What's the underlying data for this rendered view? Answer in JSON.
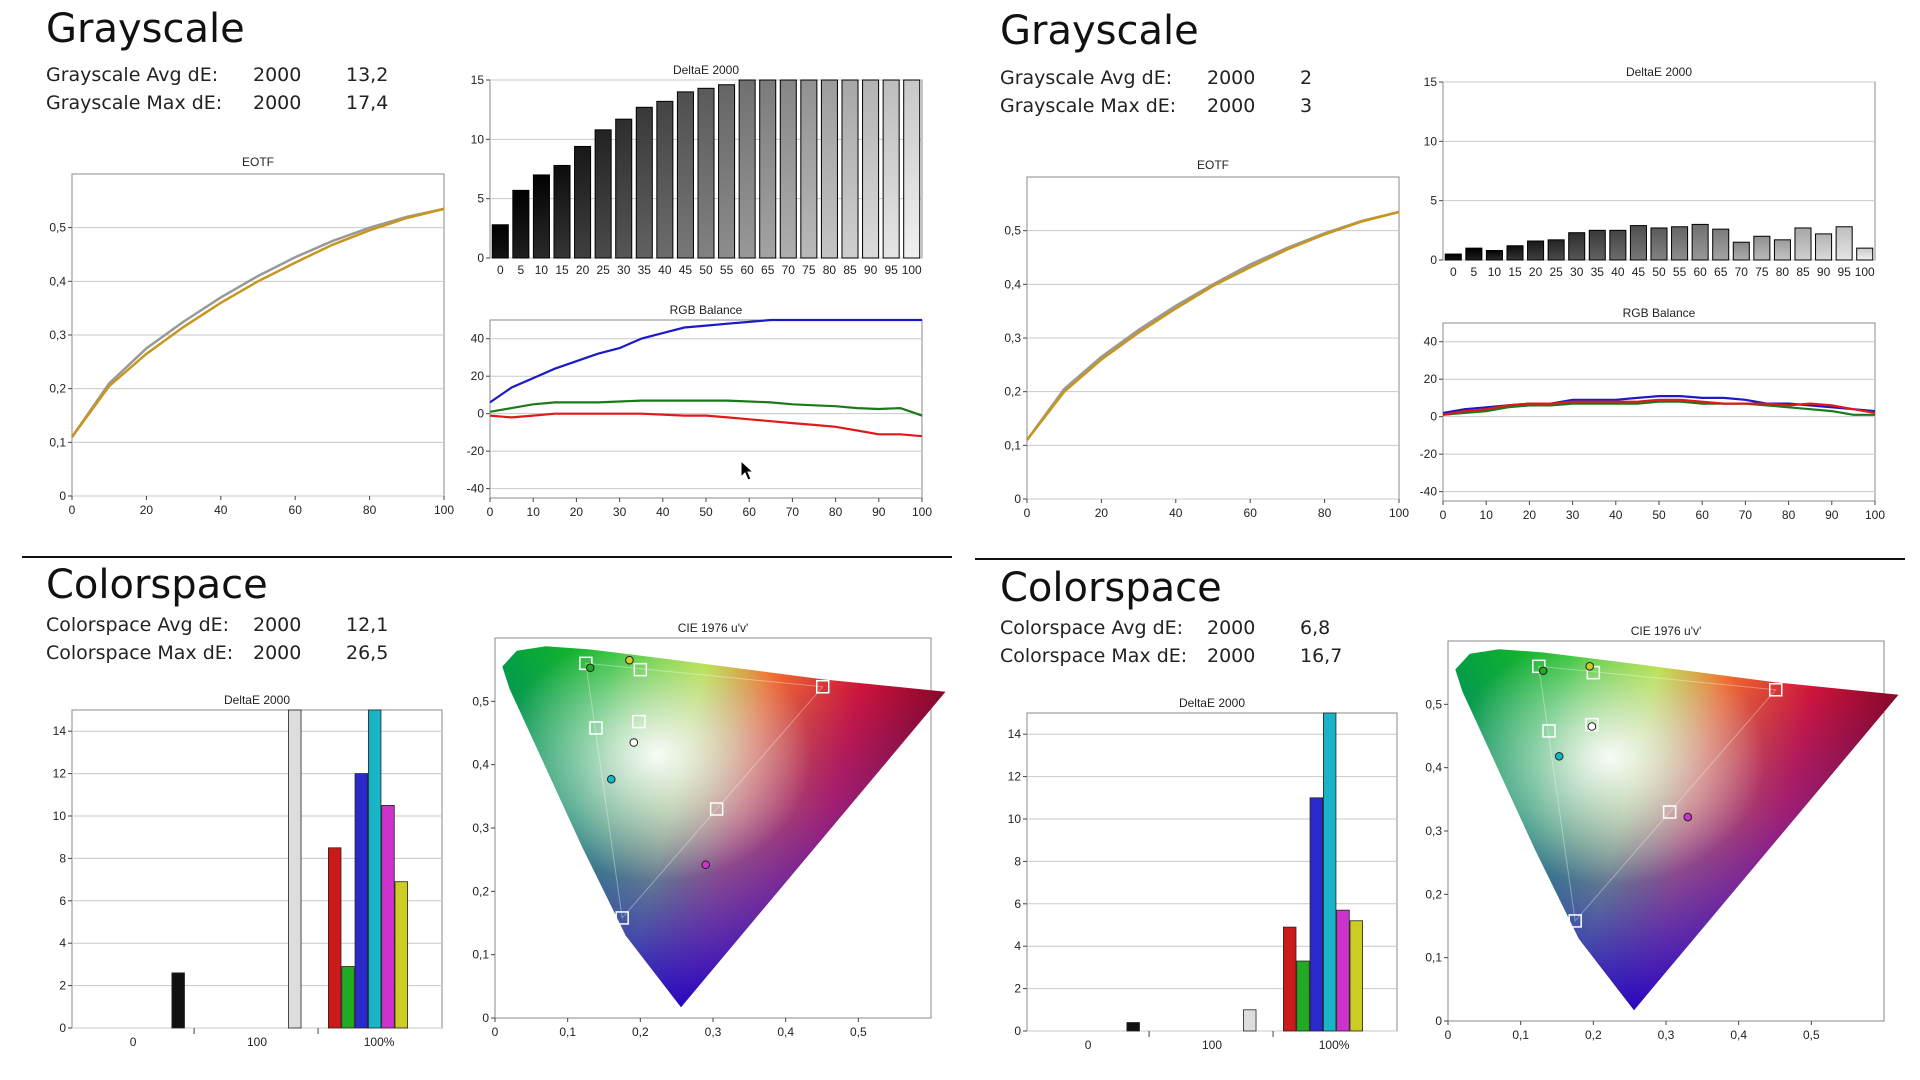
{
  "panels": [
    {
      "grayscale": {
        "heading": "Grayscale",
        "metrics": [
          {
            "label": "Grayscale Avg dE:",
            "standard": "2000",
            "value": "13,2"
          },
          {
            "label": "Grayscale Max dE:",
            "standard": "2000",
            "value": "17,4"
          }
        ]
      },
      "colorspace": {
        "heading": "Colorspace",
        "metrics": [
          {
            "label": "Colorspace Avg dE:",
            "standard": "2000",
            "value": "12,1"
          },
          {
            "label": "Colorspace Max dE:",
            "standard": "2000",
            "value": "26,5"
          }
        ]
      }
    },
    {
      "grayscale": {
        "heading": "Grayscale",
        "metrics": [
          {
            "label": "Grayscale Avg dE:",
            "standard": "2000",
            "value": "2"
          },
          {
            "label": "Grayscale Max dE:",
            "standard": "2000",
            "value": "3"
          }
        ]
      },
      "colorspace": {
        "heading": "Colorspace",
        "metrics": [
          {
            "label": "Colorspace Avg dE:",
            "standard": "2000",
            "value": "6,8"
          },
          {
            "label": "Colorspace Max dE:",
            "standard": "2000",
            "value": "16,7"
          }
        ]
      }
    }
  ],
  "chart_data": [
    {
      "type": "line",
      "title": "EOTF",
      "x": [
        0,
        10,
        20,
        30,
        40,
        50,
        60,
        70,
        80,
        90,
        100
      ],
      "series": [
        {
          "values": [
            0.11,
            0.21,
            0.275,
            0.325,
            0.37,
            0.41,
            0.445,
            0.475,
            0.5,
            0.52,
            0.535
          ],
          "color": "#999999"
        },
        {
          "values": [
            0.11,
            0.205,
            0.265,
            0.315,
            0.36,
            0.4,
            0.435,
            0.468,
            0.495,
            0.518,
            0.535
          ],
          "color": "#C8961E"
        }
      ],
      "xlim": [
        0,
        100
      ],
      "ylim": [
        0,
        0.6
      ],
      "xticks": [
        "0",
        "20",
        "40",
        "60",
        "80",
        "100"
      ],
      "yticks": [
        "0",
        "0,1",
        "0,2",
        "0,3",
        "0,4",
        "0,5"
      ]
    },
    {
      "type": "bar",
      "title": "DeltaE 2000",
      "categories": [
        "0",
        "5",
        "10",
        "15",
        "20",
        "25",
        "30",
        "35",
        "40",
        "45",
        "50",
        "55",
        "60",
        "65",
        "70",
        "75",
        "80",
        "85",
        "90",
        "95",
        "100"
      ],
      "values": [
        2.8,
        5.7,
        7,
        7.8,
        9.4,
        10.8,
        11.7,
        12.7,
        13.2,
        14,
        14.3,
        14.6,
        15.5,
        15.8,
        16.2,
        16.6,
        16.8,
        17,
        17.2,
        17.3,
        17.4
      ],
      "ylim": [
        0,
        15
      ],
      "yticks": [
        "0",
        "5",
        "10",
        "15"
      ]
    },
    {
      "type": "line",
      "title": "RGB Balance",
      "x": [
        0,
        5,
        10,
        15,
        20,
        25,
        30,
        35,
        40,
        45,
        50,
        55,
        60,
        65,
        70,
        75,
        80,
        85,
        90,
        95,
        100
      ],
      "series": [
        {
          "color": "#1A1AC8",
          "values": [
            6,
            14,
            19,
            24,
            28,
            32,
            35,
            40,
            43,
            46,
            47,
            48,
            49,
            50,
            50,
            50,
            50,
            50,
            50,
            50,
            50
          ]
        },
        {
          "color": "#1A7A1A",
          "values": [
            1,
            3,
            5,
            6,
            6,
            6,
            6.5,
            7,
            7,
            7,
            7,
            7,
            6.5,
            6,
            5,
            4.5,
            4,
            3,
            2.5,
            3,
            -1
          ]
        },
        {
          "color": "#E01A1A",
          "values": [
            -1,
            -2,
            -1,
            0,
            0,
            0,
            0,
            0,
            -0.5,
            -1,
            -1,
            -2,
            -3,
            -4,
            -5,
            -6,
            -7,
            -9,
            -11,
            -11,
            -12
          ]
        }
      ],
      "xlim": [
        0,
        100
      ],
      "ylim": [
        -45,
        50
      ],
      "xticks": [
        "0",
        "10",
        "20",
        "30",
        "40",
        "50",
        "60",
        "70",
        "80",
        "90",
        "100"
      ],
      "yticks": [
        "-40",
        "-20",
        "0",
        "20",
        "40"
      ]
    },
    {
      "type": "bar",
      "title": "DeltaE 2000",
      "xticks": [
        "0",
        "100",
        "100%"
      ],
      "bars": [
        {
          "value": 2.6,
          "color": "#111111"
        },
        {
          "value": 15,
          "color": "#dddddd"
        },
        {
          "value": 8.5,
          "color": "#cc1a1a"
        },
        {
          "value": 2.9,
          "color": "#22aa22"
        },
        {
          "value": 12,
          "color": "#2a2acc"
        },
        {
          "value": 15,
          "color": "#1ab4c8"
        },
        {
          "value": 10.5,
          "color": "#cc33cc"
        },
        {
          "value": 6.9,
          "color": "#cccc22"
        }
      ],
      "ylim": [
        0,
        15
      ],
      "yticks": [
        "0",
        "2",
        "4",
        "6",
        "8",
        "10",
        "12",
        "14"
      ]
    },
    {
      "type": "scatter",
      "title": "CIE 1976 u'v'",
      "xticks": [
        "0",
        "0,1",
        "0,2",
        "0,3",
        "0,4",
        "0,5"
      ],
      "yticks": [
        "0",
        "0,1",
        "0,2",
        "0,3",
        "0,4",
        "0,5"
      ],
      "xlim": [
        0,
        0.6
      ],
      "ylim": [
        0,
        0.6
      ],
      "targets": [
        [
          0.125,
          0.56
        ],
        [
          0.175,
          0.158
        ],
        [
          0.451,
          0.523
        ],
        [
          0.198,
          0.468
        ],
        [
          0.139,
          0.458
        ],
        [
          0.2,
          0.55
        ],
        [
          0.305,
          0.33
        ]
      ],
      "measured": [
        {
          "u": 0.131,
          "v": 0.553,
          "color": "#22aa22"
        },
        {
          "u": 0.185,
          "v": 0.565,
          "color": "#cccc22"
        },
        {
          "u": 0.16,
          "v": 0.377,
          "color": "#1ab4c8"
        },
        {
          "u": 0.29,
          "v": 0.242,
          "color": "#cc33cc"
        },
        {
          "u": 0.191,
          "v": 0.435,
          "color": "#ffffff"
        }
      ]
    },
    {
      "type": "line",
      "title": "EOTF",
      "x": [
        0,
        10,
        20,
        30,
        40,
        50,
        60,
        70,
        80,
        90,
        100
      ],
      "series": [
        {
          "values": [
            0.11,
            0.205,
            0.265,
            0.315,
            0.36,
            0.4,
            0.437,
            0.468,
            0.495,
            0.518,
            0.535
          ],
          "color": "#999999"
        },
        {
          "values": [
            0.11,
            0.2,
            0.26,
            0.31,
            0.355,
            0.397,
            0.432,
            0.465,
            0.493,
            0.517,
            0.535
          ],
          "color": "#C8961E"
        }
      ],
      "xlim": [
        0,
        100
      ],
      "ylim": [
        0,
        0.6
      ],
      "xticks": [
        "0",
        "20",
        "40",
        "60",
        "80",
        "100"
      ],
      "yticks": [
        "0",
        "0,1",
        "0,2",
        "0,3",
        "0,4",
        "0,5"
      ]
    },
    {
      "type": "bar",
      "title": "DeltaE 2000",
      "categories": [
        "0",
        "5",
        "10",
        "15",
        "20",
        "25",
        "30",
        "35",
        "40",
        "45",
        "50",
        "55",
        "60",
        "65",
        "70",
        "75",
        "80",
        "85",
        "90",
        "95",
        "100"
      ],
      "values": [
        0.5,
        1,
        0.8,
        1.2,
        1.6,
        1.7,
        2.3,
        2.5,
        2.5,
        2.9,
        2.7,
        2.8,
        3,
        2.6,
        1.5,
        2,
        1.7,
        2.7,
        2.2,
        2.8,
        1
      ],
      "ylim": [
        0,
        15
      ],
      "yticks": [
        "0",
        "5",
        "10",
        "15"
      ]
    },
    {
      "type": "line",
      "title": "RGB Balance",
      "x": [
        0,
        5,
        10,
        15,
        20,
        25,
        30,
        35,
        40,
        45,
        50,
        55,
        60,
        65,
        70,
        75,
        80,
        85,
        90,
        95,
        100
      ],
      "series": [
        {
          "color": "#1A1AC8",
          "values": [
            2,
            4,
            5,
            6,
            7,
            7,
            9,
            9,
            9,
            10,
            11,
            11,
            10,
            10,
            9,
            7,
            7,
            6,
            5,
            4,
            3
          ]
        },
        {
          "color": "#1A7A1A",
          "values": [
            1,
            2,
            3,
            5,
            6,
            6,
            7,
            7,
            7,
            7,
            8,
            8,
            7,
            7,
            7,
            6,
            5,
            4,
            3,
            1,
            1
          ]
        },
        {
          "color": "#E01A1A",
          "values": [
            1,
            3,
            4,
            6,
            7,
            7,
            8,
            8,
            8,
            8,
            9,
            9,
            8,
            7,
            7,
            7,
            6,
            7,
            6,
            4,
            2
          ]
        }
      ],
      "xlim": [
        0,
        100
      ],
      "ylim": [
        -45,
        50
      ],
      "xticks": [
        "0",
        "10",
        "20",
        "30",
        "40",
        "50",
        "60",
        "70",
        "80",
        "90",
        "100"
      ],
      "yticks": [
        "-40",
        "-20",
        "0",
        "20",
        "40"
      ]
    },
    {
      "type": "bar",
      "title": "DeltaE 2000",
      "xticks": [
        "0",
        "100",
        "100%"
      ],
      "bars": [
        {
          "value": 0.4,
          "color": "#111111"
        },
        {
          "value": 1,
          "color": "#dddddd"
        },
        {
          "value": 4.9,
          "color": "#cc1a1a"
        },
        {
          "value": 3.3,
          "color": "#22aa22"
        },
        {
          "value": 11,
          "color": "#2a2acc"
        },
        {
          "value": 15,
          "color": "#1ab4c8"
        },
        {
          "value": 5.7,
          "color": "#cc33cc"
        },
        {
          "value": 5.2,
          "color": "#cccc22"
        }
      ],
      "ylim": [
        0,
        15
      ],
      "yticks": [
        "0",
        "2",
        "4",
        "6",
        "8",
        "10",
        "12",
        "14"
      ]
    },
    {
      "type": "scatter",
      "title": "CIE 1976 u'v'",
      "xticks": [
        "0",
        "0,1",
        "0,2",
        "0,3",
        "0,4",
        "0,5"
      ],
      "yticks": [
        "0",
        "0,1",
        "0,2",
        "0,3",
        "0,4",
        "0,5"
      ],
      "xlim": [
        0,
        0.6
      ],
      "ylim": [
        0,
        0.6
      ],
      "targets": [
        [
          0.125,
          0.56
        ],
        [
          0.175,
          0.158
        ],
        [
          0.451,
          0.523
        ],
        [
          0.198,
          0.468
        ],
        [
          0.139,
          0.458
        ],
        [
          0.2,
          0.55
        ],
        [
          0.305,
          0.33
        ]
      ],
      "measured": [
        {
          "u": 0.131,
          "v": 0.553,
          "color": "#22aa22"
        },
        {
          "u": 0.195,
          "v": 0.56,
          "color": "#cccc22"
        },
        {
          "u": 0.153,
          "v": 0.418,
          "color": "#1ab4c8"
        },
        {
          "u": 0.33,
          "v": 0.322,
          "color": "#cc33cc"
        },
        {
          "u": 0.198,
          "v": 0.465,
          "color": "#ffffff"
        }
      ]
    }
  ]
}
